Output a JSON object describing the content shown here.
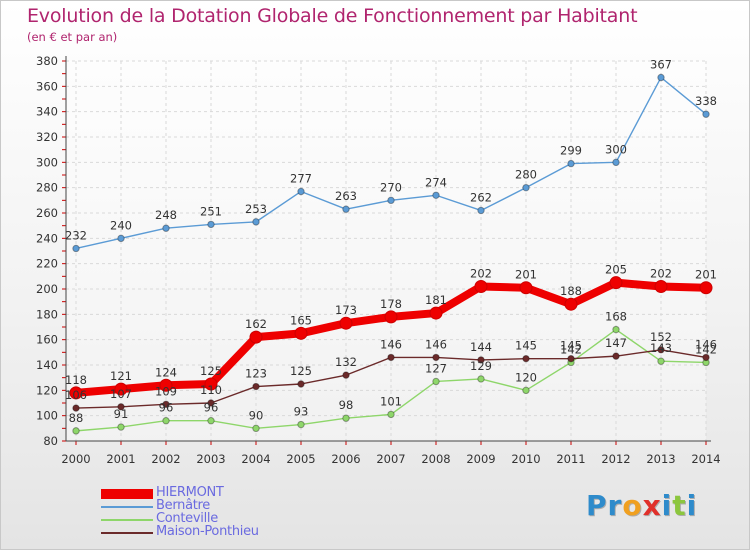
{
  "title": "Evolution de la Dotation Globale de Fonctionnement par Habitant",
  "subtitle": "(en € et par an)",
  "logo": {
    "text": "Proxiti",
    "colors": [
      "#2e8bcb",
      "#2e8bcb",
      "#f0a020",
      "#e0302a",
      "#2e8bcb",
      "#8cc63e",
      "#2e8bcb"
    ]
  },
  "chart_data": {
    "type": "line",
    "x": [
      "2000",
      "2001",
      "2002",
      "2003",
      "2004",
      "2005",
      "2006",
      "2007",
      "2008",
      "2009",
      "2010",
      "2011",
      "2012",
      "2013",
      "2014"
    ],
    "ylim": [
      80,
      380
    ],
    "yticks": [
      80,
      100,
      120,
      140,
      160,
      180,
      200,
      220,
      240,
      260,
      280,
      300,
      320,
      340,
      360,
      380
    ],
    "grid": true,
    "legend_position": "bottom-left",
    "series": [
      {
        "name": "Bernâtre",
        "color": "#5b9bd5",
        "values": [
          232,
          240,
          248,
          251,
          253,
          277,
          263,
          270,
          274,
          262,
          280,
          299,
          300,
          367,
          338
        ]
      },
      {
        "name": "Conteville",
        "color": "#8ed66a",
        "values": [
          88,
          91,
          96,
          96,
          90,
          93,
          98,
          101,
          127,
          129,
          120,
          142,
          168,
          143,
          142
        ]
      },
      {
        "name": "Maison-Ponthieu",
        "color": "#6b2a2a",
        "values": [
          106,
          107,
          109,
          110,
          123,
          125,
          132,
          146,
          146,
          144,
          145,
          145,
          147,
          152,
          146
        ]
      },
      {
        "name": "HIERMONT",
        "color": "#ee0000",
        "values": [
          118,
          121,
          124,
          125,
          162,
          165,
          173,
          178,
          181,
          202,
          201,
          188,
          205,
          202,
          201
        ]
      }
    ],
    "legend_order": [
      "HIERMONT",
      "Bernâtre",
      "Conteville",
      "Maison-Ponthieu"
    ],
    "legend_label_colors": [
      "#6a6ae0",
      "#6a6ae0",
      "#6a6ae0",
      "#6a6ae0"
    ]
  }
}
